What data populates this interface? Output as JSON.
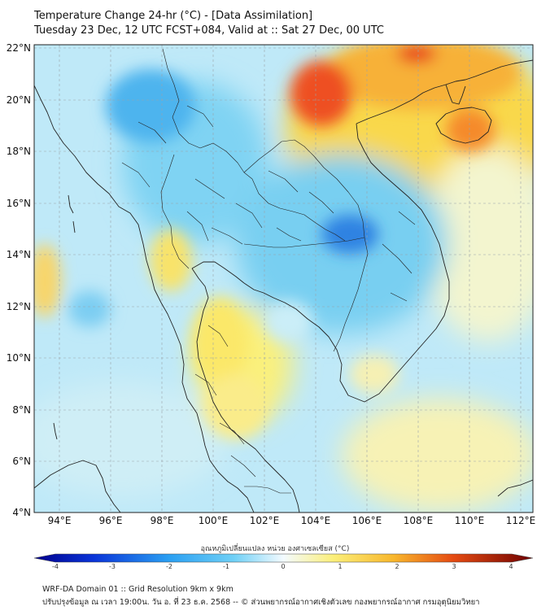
{
  "title": {
    "line1": "Temperature Change 24-hr (°C) - [Data Assimilation]",
    "line2": "Tuesday 23 Dec, 12 UTC FCST+084, Valid at :: Sat 27 Dec, 00 UTC"
  },
  "axes": {
    "lat_labels": [
      "22°N",
      "20°N",
      "18°N",
      "16°N",
      "14°N",
      "12°N",
      "10°N",
      "8°N",
      "6°N",
      "4°N"
    ],
    "lon_labels": [
      "94°E",
      "96°E",
      "98°E",
      "100°E",
      "102°E",
      "104°E",
      "106°E",
      "108°E",
      "110°E",
      "112°E"
    ]
  },
  "colorbar": {
    "label": "อุณหภูมิเปลี่ยนแปลง หน่วย องศาเซลเซียส (°C)",
    "ticks": [
      "-4",
      "-3",
      "-2",
      "-1",
      "0",
      "1",
      "2",
      "3",
      "4"
    ],
    "min": -4,
    "max": 4
  },
  "footer": {
    "line1": "WRF-DA Domain 01 :: Grid Resolution 9km x 9km",
    "line2": "ปรับปรุงข้อมูล ณ เวลา 19:00น. วัน อ. ที่ 23 ธ.ค. 2568 -- © ส่วนพยากรณ์อากาศเชิงตัวเลข กองพยากรณ์อากาศ กรมอุตุนิยมวิทยา"
  },
  "colors": {
    "cold_strong": "#1a6fdc",
    "cold": "#5ec6f0",
    "neutral": "#e4f4fb",
    "warm": "#fbe96a",
    "hot": "#f6a22a",
    "hottest": "#e42a12"
  },
  "map_extent": {
    "lon_min": 93,
    "lon_max": 112.5,
    "lat_min": 4,
    "lat_max": 22.2
  }
}
